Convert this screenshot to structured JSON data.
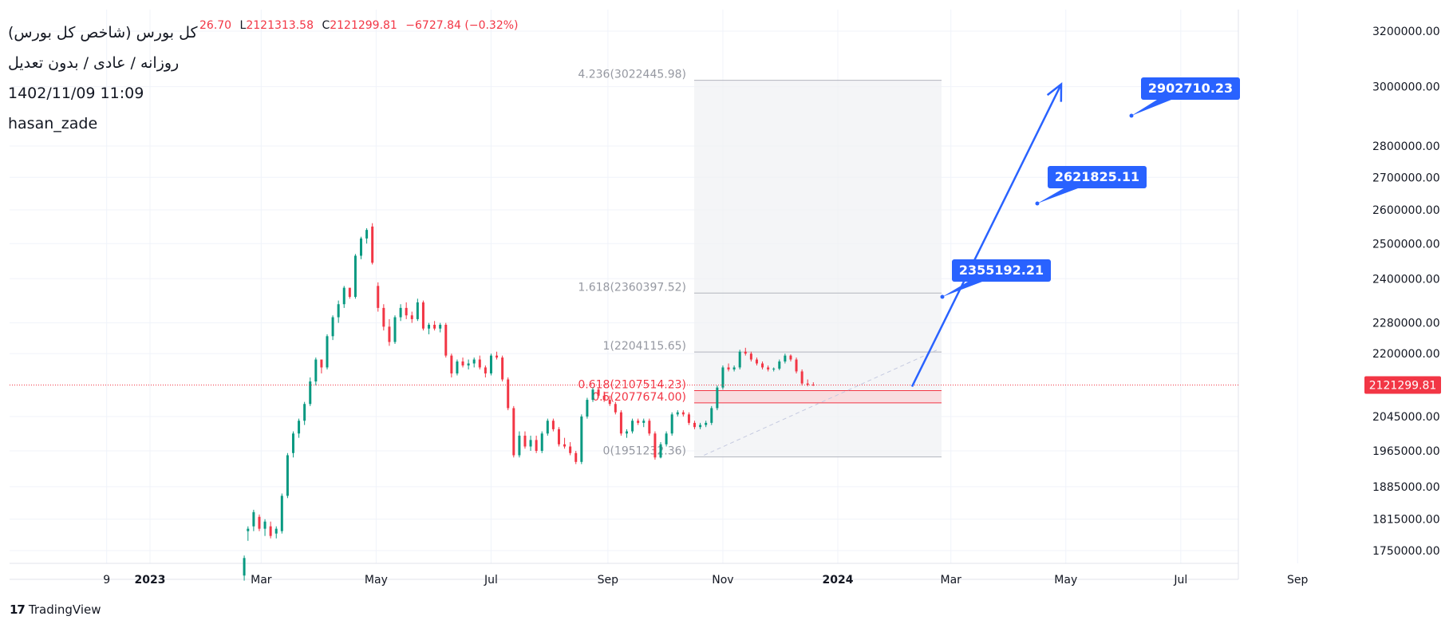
{
  "header": {
    "title": "کل بورس (شاخص کل بورس)",
    "subtitle": "روزانه / عادی / بدون تعدیل",
    "datetime": "1402/11/09 11:09",
    "author": "hasan_zade",
    "ohlc_fragment": {
      "o_tail": "26.70",
      "l_label": "L",
      "l_value": "2121313.58",
      "c_label": "C",
      "c_value": "2121299.81",
      "change": "−6727.84 (−0.32%)"
    }
  },
  "watermark": {
    "logo": "17",
    "text": "TradingView"
  },
  "colors": {
    "up": "#089981",
    "down": "#f23645",
    "accent_blue": "#2962ff",
    "label_blue": "#2962ff",
    "grid": "#f0f3fa",
    "fib_fill": "#f0f1f4",
    "fib_zone": "#f9d7d9",
    "axis_text": "#131722",
    "price_tag": "#f23645"
  },
  "price_axis": {
    "ticks": [
      "3200000.00",
      "3000000.00",
      "2800000.00",
      "2700000.00",
      "2600000.00",
      "2500000.00",
      "2400000.00",
      "2280000.00",
      "2200000.00",
      "2045000.00",
      "1965000.00",
      "1885000.00",
      "1815000.00",
      "1750000.00"
    ],
    "tick_values": [
      3200000,
      3000000,
      2800000,
      2700000,
      2600000,
      2500000,
      2400000,
      2280000,
      2200000,
      2045000,
      1965000,
      1885000,
      1815000,
      1750000
    ],
    "current_price": "2121299.81",
    "current_value": 2121299.81
  },
  "time_axis": {
    "labels": [
      "9",
      "2023",
      "Mar",
      "May",
      "Jul",
      "Sep",
      "Nov",
      "2024",
      "Mar",
      "May",
      "Jul",
      "Sep"
    ],
    "bold": [
      false,
      true,
      false,
      false,
      false,
      false,
      false,
      true,
      false,
      false,
      false,
      false
    ]
  },
  "fib_levels": [
    {
      "label": "4.236(3022445.98)",
      "value": 3022445.98
    },
    {
      "label": "1.618(2360397.52)",
      "value": 2360397.52
    },
    {
      "label": "1(2204115.65)",
      "value": 2204115.65
    },
    {
      "label": "0.618(2107514.23)",
      "value": 2107514.23
    },
    {
      "label": "0.5(2077674.00)",
      "value": 2077674.0
    },
    {
      "label": "0(1951232.36)",
      "value": 1951232.36
    }
  ],
  "target_labels": [
    {
      "text": "2902710.23",
      "value": 2902710.23
    },
    {
      "text": "2621825.11",
      "value": 2621825.11
    },
    {
      "text": "2355192.21",
      "value": 2355192.21
    }
  ],
  "chart_data": {
    "type": "candlestick",
    "title": "کل بورس (شاخص کل بورس)",
    "y_scale": "log",
    "ylim": [
      1710000,
      3280000
    ],
    "x_range": [
      "2022-12",
      "2024-09"
    ],
    "grid": true,
    "series": [
      {
        "name": "candles",
        "points": [
          {
            "date": "2023-02-20",
            "o": 1700000,
            "h": 1740000,
            "l": 1690000,
            "c": 1735000
          },
          {
            "date": "2023-02-22",
            "o": 1790000,
            "h": 1800000,
            "l": 1770000,
            "c": 1795000
          },
          {
            "date": "2023-02-25",
            "o": 1800000,
            "h": 1835000,
            "l": 1790000,
            "c": 1830000
          },
          {
            "date": "2023-02-28",
            "o": 1820000,
            "h": 1825000,
            "l": 1790000,
            "c": 1795000
          },
          {
            "date": "2023-03-03",
            "o": 1795000,
            "h": 1815000,
            "l": 1780000,
            "c": 1810000
          },
          {
            "date": "2023-03-06",
            "o": 1800000,
            "h": 1810000,
            "l": 1775000,
            "c": 1780000
          },
          {
            "date": "2023-03-09",
            "o": 1785000,
            "h": 1800000,
            "l": 1775000,
            "c": 1795000
          },
          {
            "date": "2023-03-12",
            "o": 1790000,
            "h": 1870000,
            "l": 1785000,
            "c": 1865000
          },
          {
            "date": "2023-03-15",
            "o": 1865000,
            "h": 1960000,
            "l": 1860000,
            "c": 1955000
          },
          {
            "date": "2023-03-18",
            "o": 1960000,
            "h": 2010000,
            "l": 1950000,
            "c": 2005000
          },
          {
            "date": "2023-03-21",
            "o": 2005000,
            "h": 2040000,
            "l": 1995000,
            "c": 2035000
          },
          {
            "date": "2023-03-24",
            "o": 2035000,
            "h": 2080000,
            "l": 2025000,
            "c": 2075000
          },
          {
            "date": "2023-03-27",
            "o": 2075000,
            "h": 2140000,
            "l": 2070000,
            "c": 2130000
          },
          {
            "date": "2023-03-30",
            "o": 2130000,
            "h": 2190000,
            "l": 2120000,
            "c": 2185000
          },
          {
            "date": "2023-04-02",
            "o": 2185000,
            "h": 2175000,
            "l": 2150000,
            "c": 2165000
          },
          {
            "date": "2023-04-05",
            "o": 2165000,
            "h": 2250000,
            "l": 2160000,
            "c": 2245000
          },
          {
            "date": "2023-04-08",
            "o": 2245000,
            "h": 2300000,
            "l": 2235000,
            "c": 2295000
          },
          {
            "date": "2023-04-11",
            "o": 2295000,
            "h": 2340000,
            "l": 2280000,
            "c": 2330000
          },
          {
            "date": "2023-04-14",
            "o": 2330000,
            "h": 2380000,
            "l": 2320000,
            "c": 2375000
          },
          {
            "date": "2023-04-17",
            "o": 2375000,
            "h": 2360000,
            "l": 2345000,
            "c": 2350000
          },
          {
            "date": "2023-04-20",
            "o": 2350000,
            "h": 2470000,
            "l": 2345000,
            "c": 2465000
          },
          {
            "date": "2023-04-23",
            "o": 2465000,
            "h": 2520000,
            "l": 2455000,
            "c": 2515000
          },
          {
            "date": "2023-04-26",
            "o": 2515000,
            "h": 2545000,
            "l": 2500000,
            "c": 2540000
          },
          {
            "date": "2023-04-29",
            "o": 2550000,
            "h": 2560000,
            "l": 2440000,
            "c": 2445000
          },
          {
            "date": "2023-05-02",
            "o": 2380000,
            "h": 2390000,
            "l": 2310000,
            "c": 2320000
          },
          {
            "date": "2023-05-05",
            "o": 2320000,
            "h": 2330000,
            "l": 2260000,
            "c": 2270000
          },
          {
            "date": "2023-05-08",
            "o": 2270000,
            "h": 2290000,
            "l": 2220000,
            "c": 2230000
          },
          {
            "date": "2023-05-11",
            "o": 2230000,
            "h": 2300000,
            "l": 2225000,
            "c": 2295000
          },
          {
            "date": "2023-05-14",
            "o": 2295000,
            "h": 2330000,
            "l": 2285000,
            "c": 2320000
          },
          {
            "date": "2023-05-17",
            "o": 2320000,
            "h": 2335000,
            "l": 2290000,
            "c": 2300000
          },
          {
            "date": "2023-05-20",
            "o": 2300000,
            "h": 2310000,
            "l": 2280000,
            "c": 2290000
          },
          {
            "date": "2023-05-23",
            "o": 2290000,
            "h": 2345000,
            "l": 2285000,
            "c": 2335000
          },
          {
            "date": "2023-05-26",
            "o": 2335000,
            "h": 2340000,
            "l": 2260000,
            "c": 2265000
          },
          {
            "date": "2023-05-29",
            "o": 2265000,
            "h": 2280000,
            "l": 2250000,
            "c": 2275000
          },
          {
            "date": "2023-06-01",
            "o": 2275000,
            "h": 2285000,
            "l": 2260000,
            "c": 2265000
          },
          {
            "date": "2023-06-04",
            "o": 2265000,
            "h": 2280000,
            "l": 2255000,
            "c": 2275000
          },
          {
            "date": "2023-06-07",
            "o": 2275000,
            "h": 2280000,
            "l": 2190000,
            "c": 2195000
          },
          {
            "date": "2023-06-10",
            "o": 2195000,
            "h": 2200000,
            "l": 2140000,
            "c": 2150000
          },
          {
            "date": "2023-06-13",
            "o": 2150000,
            "h": 2185000,
            "l": 2145000,
            "c": 2180000
          },
          {
            "date": "2023-06-16",
            "o": 2180000,
            "h": 2190000,
            "l": 2165000,
            "c": 2170000
          },
          {
            "date": "2023-06-19",
            "o": 2170000,
            "h": 2185000,
            "l": 2160000,
            "c": 2175000
          },
          {
            "date": "2023-06-22",
            "o": 2175000,
            "h": 2190000,
            "l": 2165000,
            "c": 2185000
          },
          {
            "date": "2023-06-25",
            "o": 2185000,
            "h": 2195000,
            "l": 2160000,
            "c": 2165000
          },
          {
            "date": "2023-06-28",
            "o": 2165000,
            "h": 2170000,
            "l": 2140000,
            "c": 2150000
          },
          {
            "date": "2023-07-01",
            "o": 2150000,
            "h": 2200000,
            "l": 2145000,
            "c": 2195000
          },
          {
            "date": "2023-07-04",
            "o": 2195000,
            "h": 2205000,
            "l": 2185000,
            "c": 2190000
          },
          {
            "date": "2023-07-07",
            "o": 2190000,
            "h": 2195000,
            "l": 2130000,
            "c": 2135000
          },
          {
            "date": "2023-07-10",
            "o": 2135000,
            "h": 2140000,
            "l": 2060000,
            "c": 2065000
          },
          {
            "date": "2023-07-13",
            "o": 2065000,
            "h": 2070000,
            "l": 1950000,
            "c": 1955000
          },
          {
            "date": "2023-07-16",
            "o": 1955000,
            "h": 2010000,
            "l": 1950000,
            "c": 2000000
          },
          {
            "date": "2023-07-19",
            "o": 2000000,
            "h": 2010000,
            "l": 1970000,
            "c": 1975000
          },
          {
            "date": "2023-07-22",
            "o": 1975000,
            "h": 2000000,
            "l": 1965000,
            "c": 1990000
          },
          {
            "date": "2023-07-25",
            "o": 1990000,
            "h": 2000000,
            "l": 1960000,
            "c": 1965000
          },
          {
            "date": "2023-07-28",
            "o": 1965000,
            "h": 2010000,
            "l": 1960000,
            "c": 2005000
          },
          {
            "date": "2023-07-31",
            "o": 2005000,
            "h": 2040000,
            "l": 2000000,
            "c": 2035000
          },
          {
            "date": "2023-08-03",
            "o": 2035000,
            "h": 2040000,
            "l": 2010000,
            "c": 2015000
          },
          {
            "date": "2023-08-06",
            "o": 2015000,
            "h": 2020000,
            "l": 1975000,
            "c": 1980000
          },
          {
            "date": "2023-08-09",
            "o": 1980000,
            "h": 1995000,
            "l": 1970000,
            "c": 1975000
          },
          {
            "date": "2023-08-12",
            "o": 1975000,
            "h": 1985000,
            "l": 1955000,
            "c": 1960000
          },
          {
            "date": "2023-08-15",
            "o": 1960000,
            "h": 1965000,
            "l": 1935000,
            "c": 1940000
          },
          {
            "date": "2023-08-18",
            "o": 1940000,
            "h": 2050000,
            "l": 1935000,
            "c": 2045000
          },
          {
            "date": "2023-08-21",
            "o": 2045000,
            "h": 2090000,
            "l": 2040000,
            "c": 2085000
          },
          {
            "date": "2023-08-24",
            "o": 2085000,
            "h": 2115000,
            "l": 2080000,
            "c": 2110000
          },
          {
            "date": "2023-08-27",
            "o": 2110000,
            "h": 2115000,
            "l": 2090000,
            "c": 2095000
          },
          {
            "date": "2023-08-30",
            "o": 2095000,
            "h": 2105000,
            "l": 2080000,
            "c": 2085000
          },
          {
            "date": "2023-09-02",
            "o": 2085000,
            "h": 2095000,
            "l": 2070000,
            "c": 2075000
          },
          {
            "date": "2023-09-05",
            "o": 2075000,
            "h": 2080000,
            "l": 2050000,
            "c": 2055000
          },
          {
            "date": "2023-09-08",
            "o": 2055000,
            "h": 2060000,
            "l": 2000000,
            "c": 2005000
          },
          {
            "date": "2023-09-11",
            "o": 2005000,
            "h": 2015000,
            "l": 1995000,
            "c": 2010000
          },
          {
            "date": "2023-09-14",
            "o": 2010000,
            "h": 2040000,
            "l": 2005000,
            "c": 2035000
          },
          {
            "date": "2023-09-17",
            "o": 2035000,
            "h": 2040000,
            "l": 2025000,
            "c": 2030000
          },
          {
            "date": "2023-09-20",
            "o": 2030000,
            "h": 2040000,
            "l": 2020000,
            "c": 2035000
          },
          {
            "date": "2023-09-23",
            "o": 2035000,
            "h": 2040000,
            "l": 2000000,
            "c": 2005000
          },
          {
            "date": "2023-09-26",
            "o": 2005000,
            "h": 2010000,
            "l": 1945000,
            "c": 1950000
          },
          {
            "date": "2023-09-29",
            "o": 1950000,
            "h": 1985000,
            "l": 1948000,
            "c": 1980000
          },
          {
            "date": "2023-10-02",
            "o": 1980000,
            "h": 2010000,
            "l": 1975000,
            "c": 2005000
          },
          {
            "date": "2023-10-05",
            "o": 2005000,
            "h": 2055000,
            "l": 2000000,
            "c": 2050000
          },
          {
            "date": "2023-10-08",
            "o": 2050000,
            "h": 2060000,
            "l": 2045000,
            "c": 2055000
          },
          {
            "date": "2023-10-11",
            "o": 2055000,
            "h": 2060000,
            "l": 2045000,
            "c": 2050000
          },
          {
            "date": "2023-10-14",
            "o": 2050000,
            "h": 2055000,
            "l": 2025000,
            "c": 2030000
          },
          {
            "date": "2023-10-17",
            "o": 2030000,
            "h": 2035000,
            "l": 2015000,
            "c": 2020000
          },
          {
            "date": "2023-10-20",
            "o": 2020000,
            "h": 2030000,
            "l": 2015000,
            "c": 2025000
          },
          {
            "date": "2023-10-23",
            "o": 2025000,
            "h": 2035000,
            "l": 2020000,
            "c": 2030000
          },
          {
            "date": "2023-10-26",
            "o": 2030000,
            "h": 2070000,
            "l": 2025000,
            "c": 2065000
          },
          {
            "date": "2023-10-29",
            "o": 2065000,
            "h": 2120000,
            "l": 2060000,
            "c": 2115000
          },
          {
            "date": "2023-11-01",
            "o": 2115000,
            "h": 2170000,
            "l": 2110000,
            "c": 2165000
          },
          {
            "date": "2023-11-04",
            "o": 2165000,
            "h": 2175000,
            "l": 2155000,
            "c": 2160000
          },
          {
            "date": "2023-11-07",
            "o": 2160000,
            "h": 2170000,
            "l": 2155000,
            "c": 2165000
          },
          {
            "date": "2023-11-10",
            "o": 2165000,
            "h": 2210000,
            "l": 2160000,
            "c": 2205000
          },
          {
            "date": "2023-11-13",
            "o": 2205000,
            "h": 2215000,
            "l": 2195000,
            "c": 2200000
          },
          {
            "date": "2023-11-16",
            "o": 2200000,
            "h": 2205000,
            "l": 2180000,
            "c": 2185000
          },
          {
            "date": "2023-11-19",
            "o": 2185000,
            "h": 2190000,
            "l": 2170000,
            "c": 2175000
          },
          {
            "date": "2023-11-22",
            "o": 2175000,
            "h": 2180000,
            "l": 2160000,
            "c": 2165000
          },
          {
            "date": "2023-11-25",
            "o": 2165000,
            "h": 2170000,
            "l": 2155000,
            "c": 2160000
          },
          {
            "date": "2023-11-28",
            "o": 2160000,
            "h": 2165000,
            "l": 2155000,
            "c": 2162000
          },
          {
            "date": "2023-12-01",
            "o": 2162000,
            "h": 2185000,
            "l": 2158000,
            "c": 2180000
          },
          {
            "date": "2023-12-04",
            "o": 2180000,
            "h": 2200000,
            "l": 2175000,
            "c": 2195000
          },
          {
            "date": "2023-12-07",
            "o": 2195000,
            "h": 2198000,
            "l": 2180000,
            "c": 2185000
          },
          {
            "date": "2023-12-10",
            "o": 2185000,
            "h": 2190000,
            "l": 2150000,
            "c": 2155000
          },
          {
            "date": "2023-12-13",
            "o": 2155000,
            "h": 2160000,
            "l": 2120000,
            "c": 2125000
          },
          {
            "date": "2023-12-16",
            "o": 2125000,
            "h": 2135000,
            "l": 2118000,
            "c": 2122000
          },
          {
            "date": "2023-12-19",
            "o": 2122000,
            "h": 2128000,
            "l": 2119000,
            "c": 2121300
          }
        ]
      }
    ]
  }
}
